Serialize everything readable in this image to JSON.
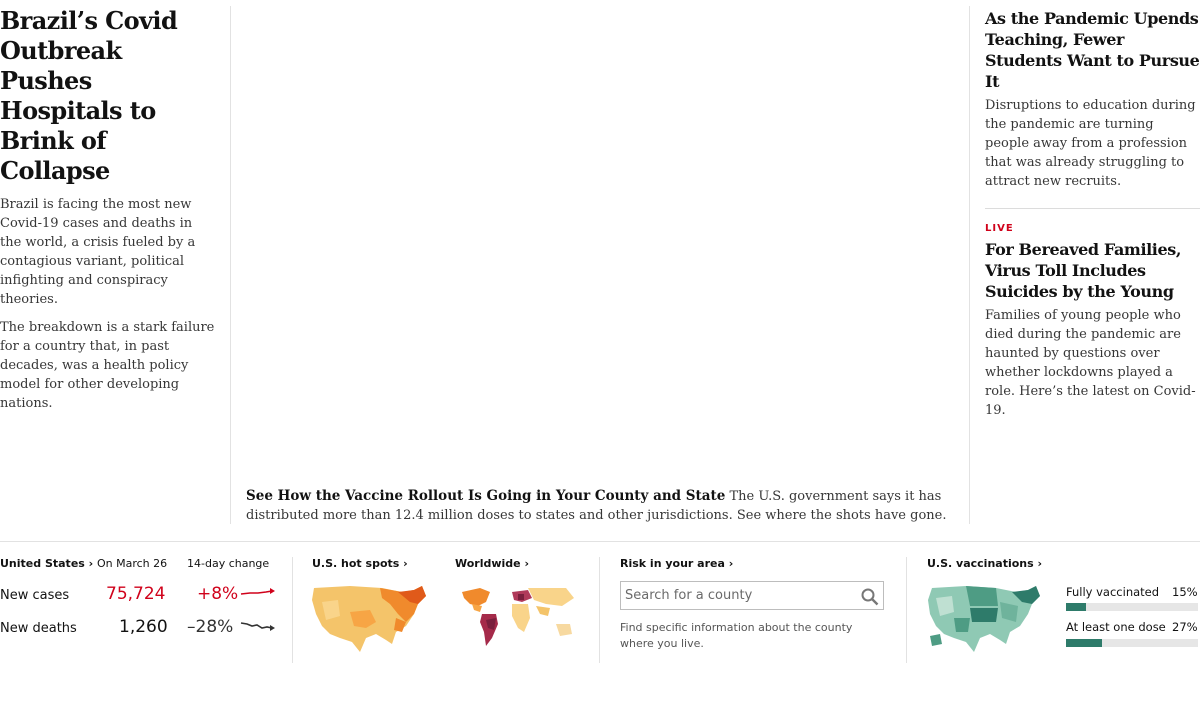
{
  "left_story": {
    "headline": "Brazil’s Covid Outbreak Pushes Hospitals to Brink of Collapse",
    "summary_1": "Brazil is facing the most new Covid-19 cases and deaths in the world, a crisis fueled by a contagious variant, political infighting and conspiracy theories.",
    "summary_2": "The breakdown is a stark failure for a country that, in past decades, was a health policy model for other developing nations."
  },
  "center_story": {
    "caption_title": "See How the Vaccine Rollout Is Going in Your County and State",
    "caption_text": "The U.S. government says it has distributed more than 12.4 million doses to states and other jurisdictions. See where the shots have gone."
  },
  "right_stories": [
    {
      "headline": "As the Pandemic Upends Teaching, Fewer Students Want to Pursue It",
      "summary": "Disruptions to education during the pandemic are turning people away from a profession that was already struggling to attract new recruits."
    },
    {
      "label": "LIVE",
      "headline": "For Bereaved Families, Virus Toll Includes Suicides by the Young",
      "summary": "Families of young people who died during the pandemic are haunted by questions over whether lockdowns played a role. Here’s the latest on Covid-19."
    }
  ],
  "tracker": {
    "us_link": "United States ›",
    "date_header": "On March 26",
    "change_header": "14-day change",
    "rows": [
      {
        "label": "New cases",
        "value": "75,724",
        "change": "+8%",
        "color": "#d0021b"
      },
      {
        "label": "New deaths",
        "value": "1,260",
        "change": "–28%",
        "color": "#333333"
      }
    ],
    "hotspots_link": "U.S. hot spots ›",
    "worldwide_link": "Worldwide ›",
    "risk_link": "Risk in your area ›",
    "search_placeholder": "Search for a county",
    "risk_text": "Find specific information about the county where you live.",
    "vacc_link": "U.S. vaccinations ›",
    "vacc_rows": [
      {
        "label": "Fully vaccinated",
        "value": "15%",
        "fraction": 0.15
      },
      {
        "label": "At least one dose",
        "value": "27%",
        "fraction": 0.27
      }
    ],
    "accent_vacc": "#2e7b6a",
    "accent_cases": "#d0021b"
  }
}
